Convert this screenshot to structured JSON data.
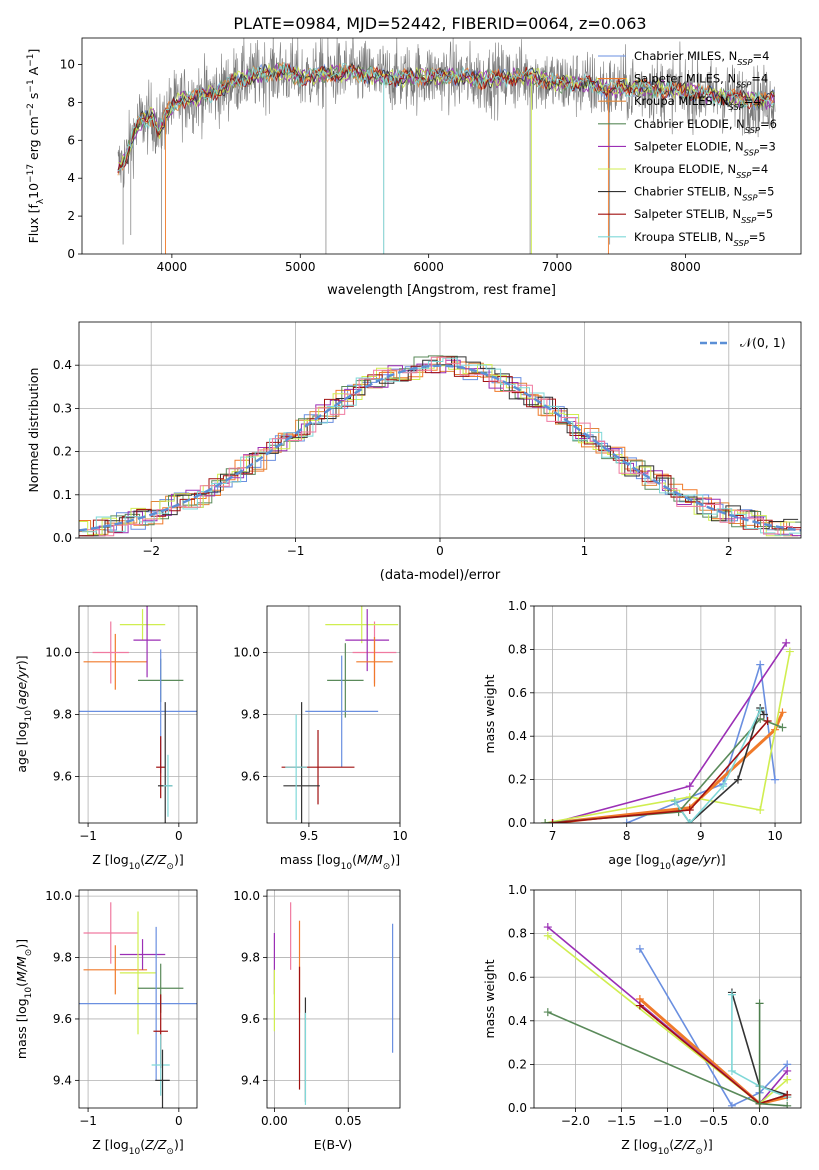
{
  "title": "PLATE=0984, MJD=52442, FIBERID=0064, z=0.063",
  "colors": [
    "#6a8fe0",
    "#f07a2a",
    "#e0863a",
    "#4e7f4e",
    "#9b2fb5",
    "#e8d84e",
    "#333333",
    "#a01010",
    "#7fd8d8"
  ],
  "colors_extra": {
    "pink": "#f07aa0",
    "lime": "#d0ee50",
    "green": "#5a8a5a",
    "gray": "#7a7a7a",
    "dash": "#5b8fd6"
  },
  "chart_data": [
    {
      "id": "spectrum",
      "type": "line",
      "xlabel": "wavelength [Angstrom, rest frame]",
      "ylabel": "Flux [f_λ10^-17 erg cm^-2 s^-1 A^-1]",
      "xlim": [
        3300,
        8900
      ],
      "ylim": [
        0,
        11.4
      ],
      "xticks": [
        4000,
        5000,
        6000,
        7000,
        8000
      ],
      "yticks": [
        0,
        2,
        4,
        6,
        8,
        10
      ],
      "legend_position": "right",
      "series": [
        {
          "name": "Chabrier MILES, N_SSP=4"
        },
        {
          "name": "Salpeter MILES, N_SSP=4"
        },
        {
          "name": "Kroupa MILES, N_SSP=4"
        },
        {
          "name": "Chabrier ELODIE, N_SSP=6"
        },
        {
          "name": "Salpeter ELODIE, N_SSP=3"
        },
        {
          "name": "Kroupa ELODIE, N_SSP=4"
        },
        {
          "name": "Chabrier STELIB, N_SSP=5"
        },
        {
          "name": "Salpeter STELIB, N_SSP=5"
        },
        {
          "name": "Kroupa STELIB, N_SSP=5"
        }
      ],
      "model_curve": {
        "x": [
          3580,
          3650,
          3700,
          3750,
          3800,
          3850,
          3900,
          3950,
          4000,
          4100,
          4200,
          4300,
          4400,
          4500,
          4600,
          4700,
          4800,
          4900,
          5000,
          5200,
          5400,
          5600,
          5800,
          6000,
          6200,
          6400,
          6600,
          6800,
          7000,
          7200,
          7400,
          7600,
          7800,
          8000,
          8200,
          8400,
          8600,
          8700
        ],
        "y": [
          4.5,
          5.2,
          6.3,
          7.0,
          7.1,
          7.3,
          6.4,
          7.3,
          7.8,
          8.2,
          8.3,
          8.5,
          8.7,
          9.2,
          9.3,
          9.5,
          9.6,
          9.6,
          9.3,
          9.5,
          9.6,
          9.4,
          9.3,
          9.4,
          9.4,
          9.2,
          9.3,
          9.4,
          9.0,
          9.0,
          8.7,
          8.8,
          8.7,
          8.6,
          8.4,
          8.2,
          8.1,
          8.2
        ]
      }
    },
    {
      "id": "residuals",
      "type": "histogram",
      "xlabel": "(data-model)/error",
      "ylabel": "Normed distribution",
      "xlim": [
        -2.5,
        2.5
      ],
      "ylim": [
        0,
        0.5
      ],
      "xticks": [
        -2,
        -1,
        0,
        1,
        2
      ],
      "yticks": [
        0.0,
        0.1,
        0.2,
        0.3,
        0.4
      ],
      "grid": true,
      "legend": "𝒩(0, 1)",
      "legend_position": "top-right"
    },
    {
      "id": "age_vs_Z",
      "type": "scatter",
      "xlabel": "Z [log10(Z/Z⊙)]",
      "ylabel": "age  [log10(age/yr)]",
      "xlim": [
        -1.1,
        0.2
      ],
      "ylim": [
        9.45,
        10.15
      ],
      "xticks": [
        -1,
        0
      ],
      "yticks": [
        9.6,
        9.8,
        10.0
      ],
      "grid": true
    },
    {
      "id": "age_vs_mass",
      "type": "scatter",
      "xlabel": "mass [log10(M/M⊙)]",
      "xlim": [
        9.27,
        10.0
      ],
      "ylim": [
        9.45,
        10.15
      ],
      "xticks": [
        9.5,
        10.0
      ],
      "yticks": [
        9.6,
        9.8,
        10.0
      ],
      "grid": true
    },
    {
      "id": "weight_vs_age",
      "type": "line",
      "xlabel": "age  [log10(age/yr)]",
      "ylabel": "mass weight",
      "xlim": [
        6.75,
        10.35
      ],
      "ylim": [
        0,
        1.0
      ],
      "xticks": [
        7,
        8,
        9,
        10
      ],
      "yticks": [
        0.0,
        0.2,
        0.4,
        0.6,
        0.8,
        1.0
      ],
      "grid": true
    },
    {
      "id": "mass_vs_Z",
      "type": "scatter",
      "xlabel": "Z [log10(Z/Z⊙)]",
      "ylabel": "mass [log10(M/M⊙)]",
      "xlim": [
        -1.1,
        0.2
      ],
      "ylim": [
        9.31,
        10.02
      ],
      "xticks": [
        -1,
        0
      ],
      "yticks": [
        9.4,
        9.6,
        9.8,
        10.0
      ],
      "grid": true
    },
    {
      "id": "mass_vs_ebv",
      "type": "scatter",
      "xlabel": "E(B-V)",
      "xlim": [
        -0.005,
        0.085
      ],
      "ylim": [
        9.31,
        10.02
      ],
      "xticks": [
        0.0,
        0.05
      ],
      "yticks": [
        9.4,
        9.6,
        9.8,
        10.0
      ],
      "grid": true
    },
    {
      "id": "weight_vs_Z",
      "type": "line",
      "xlabel": "Z [log10(Z/Z⊙)]",
      "ylabel": "mass weight",
      "xlim": [
        -2.45,
        0.45
      ],
      "ylim": [
        0,
        1.0
      ],
      "xticks": [
        -2.0,
        -1.5,
        -1.0,
        -0.5,
        0.0
      ],
      "yticks": [
        0.0,
        0.2,
        0.4,
        0.6,
        0.8,
        1.0
      ],
      "grid": true,
      "series": [
        {
          "color": "#6a8fe0",
          "x": [
            -1.3,
            -0.3,
            0.0,
            0.3
          ],
          "y": [
            0.73,
            0.01,
            0.07,
            0.2
          ]
        },
        {
          "color": "#f07a2a",
          "x": [
            -1.3,
            0.0,
            0.3
          ],
          "y": [
            0.5,
            0.02,
            0.05
          ]
        },
        {
          "color": "#9b2fb5",
          "x": [
            -2.3,
            0.0,
            0.3
          ],
          "y": [
            0.83,
            0.02,
            0.17
          ]
        },
        {
          "color": "#d0ee50",
          "x": [
            -2.3,
            0.0,
            0.3
          ],
          "y": [
            0.79,
            0.02,
            0.13
          ]
        },
        {
          "color": "#5a8a5a",
          "x": [
            -2.3,
            0.0,
            0.3
          ],
          "y": [
            0.44,
            0.02,
            0.06
          ]
        },
        {
          "color": "#333333",
          "x": [
            -0.3,
            0.0,
            0.3
          ],
          "y": [
            0.53,
            0.1,
            0.06
          ]
        },
        {
          "color": "#7fd8d8",
          "x": [
            -0.3,
            -0.3,
            0.0,
            0.3
          ],
          "y": [
            0.52,
            0.17,
            0.1,
            0.05
          ]
        },
        {
          "color": "#a01010",
          "x": [
            -1.3,
            0.0,
            0.3
          ],
          "y": [
            0.47,
            0.02,
            0.06
          ]
        },
        {
          "color": "#4e7f4e",
          "x": [
            0.0,
            0.0,
            0.3
          ],
          "y": [
            0.48,
            0.02,
            0.01
          ]
        }
      ]
    }
  ]
}
